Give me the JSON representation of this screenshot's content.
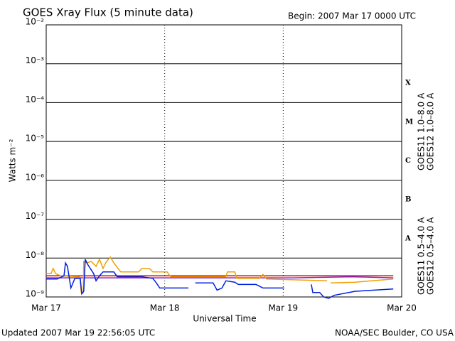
{
  "chart_data": {
    "type": "line",
    "title": "GOES Xray Flux (5 minute data)",
    "subtitle": "Begin:  2007 Mar 17 0000 UTC",
    "y_label": "Watts m⁻²",
    "x_label": "Universal Time",
    "footer_left": "Updated 2007 Mar 19 22:56:05 UTC",
    "footer_right": "NOAA/SEC Boulder, CO USA",
    "log_y": true,
    "grid": true,
    "flare_classes": [
      "X",
      "M",
      "C",
      "B",
      "A"
    ],
    "xlim": [
      0,
      72
    ],
    "xticks": [
      {
        "value": 0,
        "label": "Mar 17"
      },
      {
        "value": 24,
        "label": "Mar 18"
      },
      {
        "value": 48,
        "label": "Mar 19"
      },
      {
        "value": 72,
        "label": "Mar 20"
      }
    ],
    "ylim": [
      1e-09,
      0.01
    ],
    "yticks": [
      {
        "value": 1e-09,
        "label": "10⁻⁹"
      },
      {
        "value": 1e-08,
        "label": "10⁻⁸"
      },
      {
        "value": 1e-07,
        "label": "10⁻⁷"
      },
      {
        "value": 1e-06,
        "label": "10⁻⁶"
      },
      {
        "value": 1e-05,
        "label": "10⁻⁵"
      },
      {
        "value": 0.0001,
        "label": "10⁻⁴"
      },
      {
        "value": 0.001,
        "label": "10⁻³"
      },
      {
        "value": 0.01,
        "label": "10⁻²"
      }
    ],
    "series": [
      {
        "name": "GOES11 1.0–8.0 A",
        "color": "#7b2bd6",
        "x": [
          0,
          20,
          36,
          50,
          62,
          70.3
        ],
        "values": [
          3.1e-09,
          3.1e-09,
          3.1e-09,
          3.1e-09,
          3.3e-09,
          3.1e-09
        ]
      },
      {
        "name": "GOES12 1.0–8.0 A",
        "color": "#e00000",
        "x": [
          0,
          70.3
        ],
        "values": [
          3.5e-09,
          3.5e-09
        ]
      },
      {
        "name": "GOES11 0.5–4.0 A",
        "color": "#f0a000",
        "x": [
          0,
          1.0,
          1.4,
          1.9,
          2.9,
          6.8,
          7.1,
          7.5,
          7.6,
          8.2,
          9.1,
          10.1,
          10.8,
          11.5,
          12.2,
          13.0,
          13.7,
          15.1,
          18.7,
          19.4,
          20.9,
          21.6,
          24.5,
          25.2,
          36.4,
          36.7,
          38.2,
          38.6,
          43.2,
          43.9,
          44.6,
          56.9,
          null,
          57.6,
          62.6,
          70.3
        ],
        "values": [
          4e-09,
          4e-09,
          5.4e-09,
          4e-09,
          3.5e-09,
          3.3e-09,
          1.3e-09,
          1.3e-09,
          8.2e-09,
          7.5e-09,
          8.2e-09,
          6.1e-09,
          9.3e-09,
          5.4e-09,
          8.2e-09,
          1.06e-08,
          7.5e-09,
          4.4e-09,
          4.4e-09,
          5.4e-09,
          5.4e-09,
          4.4e-09,
          4.4e-09,
          3.3e-09,
          3.3e-09,
          4.4e-09,
          4.4e-09,
          3e-09,
          3e-09,
          3.8e-09,
          2.9e-09,
          2.6e-09,
          null,
          2.3e-09,
          2.4e-09,
          2.9e-09
        ]
      },
      {
        "name": "GOES12 0.5–4.0 A",
        "color": "#0020e0",
        "x": [
          0,
          2.2,
          3.6,
          3.9,
          4.3,
          5.0,
          5.8,
          6.9,
          7.2,
          7.6,
          7.9,
          8.4,
          9.1,
          9.6,
          10.1,
          10.8,
          11.5,
          13.7,
          14.4,
          19.4,
          21.6,
          22.3,
          23.0,
          28.8,
          null,
          30.2,
          33.8,
          34.6,
          35.6,
          36.4,
          38.2,
          38.9,
          42.5,
          43.9,
          48.2,
          null,
          53.7,
          54.0,
          55.4,
          56.2,
          57.2,
          58.3,
          62.6,
          70.3
        ],
        "values": [
          2.9e-09,
          2.9e-09,
          3.5e-09,
          7.5e-09,
          6.1e-09,
          1.7e-09,
          3e-09,
          3e-09,
          1.2e-09,
          1.4e-09,
          9.3e-09,
          6.9e-09,
          5e-09,
          4e-09,
          2.6e-09,
          3.5e-09,
          4.4e-09,
          4.4e-09,
          3.3e-09,
          3.3e-09,
          3e-09,
          2.3e-09,
          1.7e-09,
          1.7e-09,
          null,
          2.3e-09,
          2.3e-09,
          1.5e-09,
          1.7e-09,
          2.6e-09,
          2.4e-09,
          2.1e-09,
          2.1e-09,
          1.7e-09,
          1.7e-09,
          null,
          2.1e-09,
          1.3e-09,
          1.3e-09,
          1e-09,
          9.2e-10,
          1.1e-09,
          1.4e-09,
          1.6e-09
        ]
      }
    ]
  }
}
